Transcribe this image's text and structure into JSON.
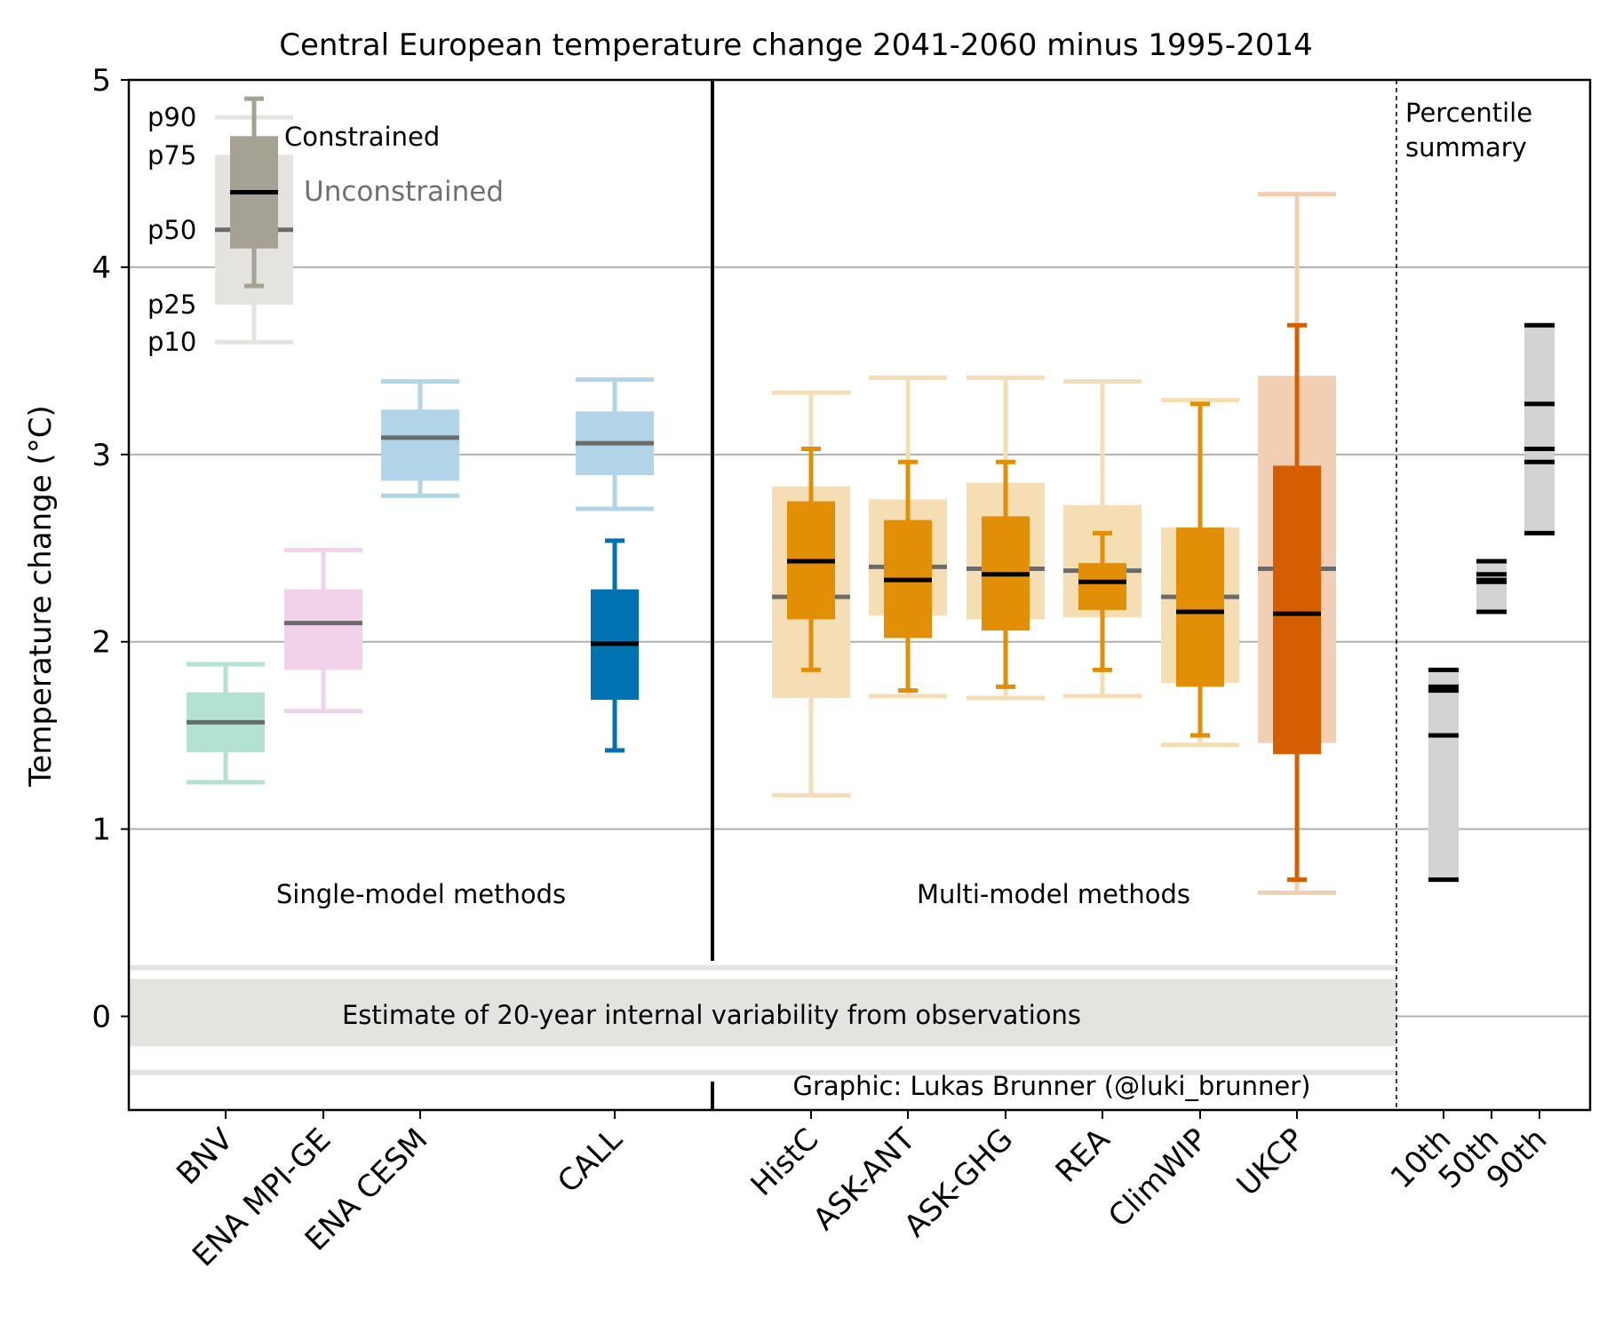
{
  "chart_data": {
    "type": "box",
    "title": "Central European temperature change 2041-2060 minus 1995-2014",
    "ylabel": "Temperature change (°C)",
    "ylim": [
      -0.5,
      5
    ],
    "yticks": [
      0,
      1,
      2,
      3,
      4,
      5
    ],
    "grid": "horizontal",
    "legend": {
      "percentile_labels": [
        "p90",
        "p75",
        "p50",
        "p25",
        "p10"
      ],
      "constrained_label": "Constrained",
      "unconstrained_label": "Unconstrained",
      "unconstrained": {
        "p10": 3.6,
        "p25": 3.8,
        "p50": 4.2,
        "p75": 4.6,
        "p90": 4.8
      },
      "constrained": {
        "p10": 3.9,
        "p25": 4.1,
        "p50": 4.4,
        "p75": 4.7,
        "p90": 4.9
      }
    },
    "section_labels": {
      "single": "Single-model methods",
      "multi": "Multi-model methods",
      "summary": [
        "Percentile",
        "summary"
      ]
    },
    "variability": {
      "label": "Estimate of 20-year internal variability from observations",
      "inner": [
        -0.16,
        0.2
      ],
      "outer": [
        -0.3,
        0.26
      ]
    },
    "credit": "Graphic: Lukas Brunner (@luki_brunner)",
    "methods": [
      {
        "name": "BNV",
        "group": "single",
        "color": "#b3e2d4",
        "unconstrained": {
          "p10": 1.25,
          "p25": 1.41,
          "p50": 1.57,
          "p75": 1.73,
          "p90": 1.88
        }
      },
      {
        "name": "ENA MPI-GE",
        "group": "single",
        "color": "#f0d3ea",
        "unconstrained": {
          "p10": 1.63,
          "p25": 1.85,
          "p50": 2.1,
          "p75": 2.28,
          "p90": 2.49
        }
      },
      {
        "name": "ENA CESM",
        "group": "single",
        "color": "#b2d4e8",
        "unconstrained": {
          "p10": 2.78,
          "p25": 2.86,
          "p50": 3.09,
          "p75": 3.24,
          "p90": 3.39
        }
      },
      {
        "name": "CALL",
        "group": "single",
        "color": "#b2d4e8",
        "constrained_color": "#0072b2",
        "unconstrained": {
          "p10": 2.71,
          "p25": 2.89,
          "p50": 3.06,
          "p75": 3.23,
          "p90": 3.4
        },
        "constrained": {
          "p10": 1.42,
          "p25": 1.69,
          "p50": 1.99,
          "p75": 2.28,
          "p90": 2.54
        }
      },
      {
        "name": "HistC",
        "group": "multi",
        "color": "#f5ddb4",
        "constrained_color": "#e08f06",
        "unconstrained": {
          "p10": 1.18,
          "p25": 1.7,
          "p50": 2.24,
          "p75": 2.83,
          "p90": 3.33
        },
        "constrained": {
          "p10": 1.85,
          "p25": 2.12,
          "p50": 2.43,
          "p75": 2.75,
          "p90": 3.03
        }
      },
      {
        "name": "ASK-ANT",
        "group": "multi",
        "color": "#f5ddb4",
        "constrained_color": "#e08f06",
        "unconstrained": {
          "p10": 1.71,
          "p25": 2.14,
          "p50": 2.4,
          "p75": 2.76,
          "p90": 3.41
        },
        "constrained": {
          "p10": 1.74,
          "p25": 2.02,
          "p50": 2.33,
          "p75": 2.65,
          "p90": 2.96
        }
      },
      {
        "name": "ASK-GHG",
        "group": "multi",
        "color": "#f5ddb4",
        "constrained_color": "#e08f06",
        "unconstrained": {
          "p10": 1.7,
          "p25": 2.12,
          "p50": 2.39,
          "p75": 2.85,
          "p90": 3.41
        },
        "constrained": {
          "p10": 1.76,
          "p25": 2.06,
          "p50": 2.36,
          "p75": 2.67,
          "p90": 2.96
        }
      },
      {
        "name": "REA",
        "group": "multi",
        "color": "#f5ddb4",
        "constrained_color": "#e08f06",
        "unconstrained": {
          "p10": 1.71,
          "p25": 2.13,
          "p50": 2.38,
          "p75": 2.73,
          "p90": 3.39
        },
        "constrained": {
          "p10": 1.85,
          "p25": 2.17,
          "p50": 2.32,
          "p75": 2.42,
          "p90": 2.58
        }
      },
      {
        "name": "ClimWIP",
        "group": "multi",
        "color": "#f5ddb4",
        "constrained_color": "#e08f06",
        "unconstrained": {
          "p10": 1.45,
          "p25": 1.78,
          "p50": 2.24,
          "p75": 2.61,
          "p90": 3.29
        },
        "constrained": {
          "p10": 1.5,
          "p25": 1.76,
          "p50": 2.16,
          "p75": 2.61,
          "p90": 3.27
        }
      },
      {
        "name": "UKCP",
        "group": "multi",
        "color": "#f2ceb2",
        "constrained_color": "#d55e00",
        "unconstrained": {
          "p10": 0.66,
          "p25": 1.46,
          "p50": 2.39,
          "p75": 3.42,
          "p90": 4.39
        },
        "constrained": {
          "p10": 0.73,
          "p25": 1.4,
          "p50": 2.15,
          "p75": 2.94,
          "p90": 3.69
        }
      }
    ],
    "summary": [
      {
        "name": "10th",
        "range": [
          0.73,
          1.85
        ],
        "marks": [
          0.73,
          1.5,
          1.74,
          1.76,
          1.85
        ]
      },
      {
        "name": "50th",
        "range": [
          2.15,
          2.43
        ],
        "marks": [
          2.16,
          2.32,
          2.33,
          2.36,
          2.43
        ]
      },
      {
        "name": "90th",
        "range": [
          2.58,
          3.69
        ],
        "marks": [
          2.58,
          2.96,
          3.03,
          3.27,
          3.69
        ]
      }
    ]
  }
}
